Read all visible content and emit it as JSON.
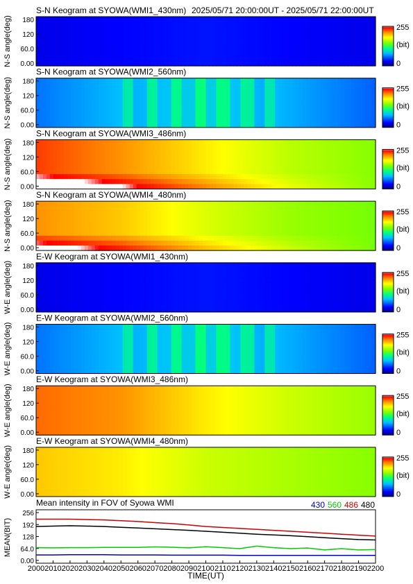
{
  "header": {
    "time_range": "2025/05/71 20:00:00UT - 2025/05/71 22:00:00UT"
  },
  "colorbar": {
    "max_label": "255",
    "unit_label": "(bit)",
    "min_label": "0"
  },
  "chart_data": [
    {
      "type": "heatmap",
      "title": "S-N Keogram at SYOWA(WMI1_430nm)",
      "ylabel": "N-S angle(deg)",
      "yticks": [
        "180",
        "120",
        "60.0",
        "0.00"
      ],
      "ylim": [
        0,
        180
      ],
      "xlim": [
        2000,
        2200
      ],
      "colorbar": [
        "0",
        "(bit)",
        "255"
      ],
      "intensity_profile": {
        "x": [
          2000,
          2050,
          2100,
          2150,
          2200
        ],
        "level_0_255": [
          25,
          30,
          35,
          30,
          25
        ]
      }
    },
    {
      "type": "heatmap",
      "title": "S-N Keogram at SYOWA(WMI2_560nm)",
      "ylabel": "N-S angle(deg)",
      "yticks": [
        "180",
        "120",
        "60.0",
        "0.00"
      ],
      "ylim": [
        0,
        180
      ],
      "xlim": [
        2000,
        2200
      ],
      "colorbar": [
        "0",
        "(bit)",
        "255"
      ],
      "intensity_profile": {
        "x": [
          2000,
          2050,
          2100,
          2150,
          2200
        ],
        "level_0_255": [
          60,
          80,
          95,
          75,
          55
        ]
      }
    },
    {
      "type": "heatmap",
      "title": "S-N Keogram at SYOWA(WMI3_486nm)",
      "ylabel": "N-S angle(deg)",
      "yticks": [
        "180",
        "120",
        "60.0",
        "0.00"
      ],
      "ylim": [
        0,
        180
      ],
      "xlim": [
        2000,
        2200
      ],
      "colorbar": [
        "0",
        "(bit)",
        "255"
      ],
      "intensity_profile": {
        "x": [
          2000,
          2050,
          2100,
          2150,
          2200
        ],
        "level_0_255": [
          235,
          215,
          190,
          165,
          150
        ]
      }
    },
    {
      "type": "heatmap",
      "title": "S-N Keogram at SYOWA(WMI4_480nm)",
      "ylabel": "N-S angle(deg)",
      "yticks": [
        "180",
        "120",
        "60.0",
        "0.00"
      ],
      "ylim": [
        0,
        180
      ],
      "xlim": [
        2000,
        2200
      ],
      "colorbar": [
        "0",
        "(bit)",
        "255"
      ],
      "intensity_profile": {
        "x": [
          2000,
          2050,
          2100,
          2150,
          2200
        ],
        "level_0_255": [
          215,
          200,
          175,
          155,
          145
        ]
      }
    },
    {
      "type": "heatmap",
      "title": "E-W Keogram at SYOWA(WMI1_430nm)",
      "ylabel": "W-E angle(deg)",
      "yticks": [
        "180",
        "120",
        "60.0",
        "0.00"
      ],
      "ylim": [
        0,
        180
      ],
      "xlim": [
        2000,
        2200
      ],
      "colorbar": [
        "0",
        "(bit)",
        "255"
      ],
      "intensity_profile": {
        "x": [
          2000,
          2050,
          2100,
          2150,
          2200
        ],
        "level_0_255": [
          25,
          30,
          35,
          30,
          25
        ]
      }
    },
    {
      "type": "heatmap",
      "title": "E-W Keogram at SYOWA(WMI2_560nm)",
      "ylabel": "W-E angle(deg)",
      "yticks": [
        "180",
        "120",
        "60.0",
        "0.00"
      ],
      "ylim": [
        0,
        180
      ],
      "xlim": [
        2000,
        2200
      ],
      "colorbar": [
        "0",
        "(bit)",
        "255"
      ],
      "intensity_profile": {
        "x": [
          2000,
          2050,
          2100,
          2150,
          2200
        ],
        "level_0_255": [
          60,
          80,
          95,
          75,
          55
        ]
      }
    },
    {
      "type": "heatmap",
      "title": "E-W Keogram at SYOWA(WMI3_486nm)",
      "ylabel": "W-E angle(deg)",
      "yticks": [
        "180",
        "120",
        "60.0",
        "0.00"
      ],
      "ylim": [
        0,
        180
      ],
      "xlim": [
        2000,
        2200
      ],
      "colorbar": [
        "0",
        "(bit)",
        "255"
      ],
      "intensity_profile": {
        "x": [
          2000,
          2050,
          2100,
          2150,
          2200
        ],
        "level_0_255": [
          225,
          215,
          190,
          170,
          155
        ]
      }
    },
    {
      "type": "heatmap",
      "title": "E-W Keogram at SYOWA(WMI4_480nm)",
      "ylabel": "W-E angle(deg)",
      "yticks": [
        "180",
        "120",
        "60.0",
        "0.00"
      ],
      "ylim": [
        0,
        180
      ],
      "xlim": [
        2000,
        2200
      ],
      "colorbar": [
        "0",
        "(bit)",
        "255"
      ],
      "intensity_profile": {
        "x": [
          2000,
          2050,
          2100,
          2150,
          2200
        ],
        "level_0_255": [
          200,
          190,
          170,
          160,
          150
        ]
      }
    },
    {
      "type": "line",
      "title": "Mean intensity in FOV of Syowa WMI",
      "xlabel": "TIME(UT)",
      "ylabel": "MEAN(BIT)",
      "x": [
        2000,
        2010,
        2020,
        2030,
        2040,
        2050,
        2060,
        2070,
        2080,
        2090,
        2100,
        2110,
        2120,
        2130,
        2140,
        2150,
        2160,
        2170,
        2180,
        2190,
        2200
      ],
      "xticks": [
        "2000",
        "2010",
        "2020",
        "2030",
        "2040",
        "2050",
        "2060",
        "2070",
        "2080",
        "2090",
        "2100",
        "2110",
        "2120",
        "2130",
        "2140",
        "2150",
        "2160",
        "2170",
        "2180",
        "2190",
        "2200"
      ],
      "yticks": [
        "256",
        "192",
        "128",
        "64.0",
        "0.00"
      ],
      "ylim": [
        0,
        256
      ],
      "series": [
        {
          "name": "430",
          "color": "#0000cc",
          "values": [
            32,
            32,
            33,
            33,
            33,
            32,
            32,
            32,
            31,
            31,
            31,
            31,
            30,
            30,
            30,
            30,
            30,
            30,
            30,
            30,
            30
          ]
        },
        {
          "name": "560",
          "color": "#00cc00",
          "values": [
            70,
            69,
            70,
            70,
            71,
            71,
            71,
            74,
            72,
            69,
            75,
            70,
            65,
            78,
            70,
            65,
            68,
            58,
            65,
            58,
            60
          ]
        },
        {
          "name": "486",
          "color": "#cc0000",
          "values": [
            218,
            218,
            218,
            216,
            214,
            210,
            206,
            200,
            195,
            188,
            180,
            175,
            170,
            165,
            160,
            155,
            150,
            145,
            140,
            135,
            130
          ]
        },
        {
          "name": "480",
          "color": "#000000",
          "values": [
            180,
            182,
            184,
            182,
            180,
            176,
            172,
            168,
            164,
            160,
            155,
            150,
            145,
            140,
            136,
            132,
            127,
            122,
            117,
            112,
            110
          ]
        }
      ]
    }
  ]
}
